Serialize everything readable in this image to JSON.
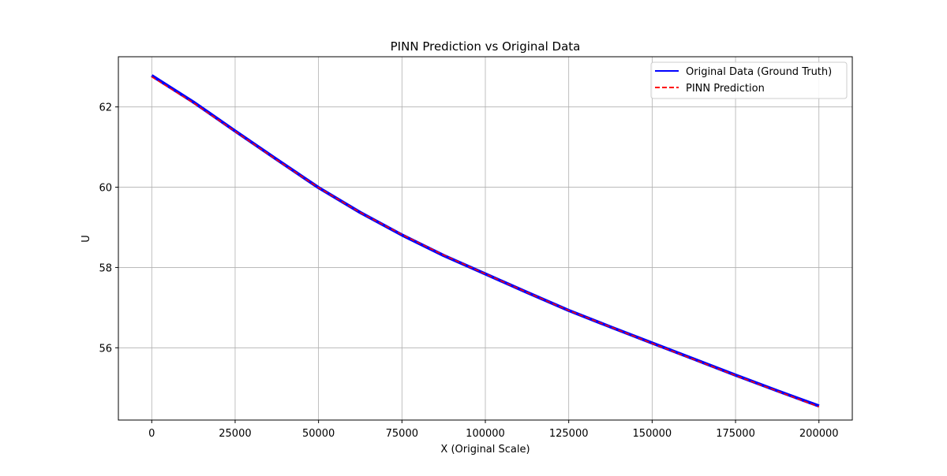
{
  "chart_data": {
    "type": "line",
    "title": "PINN Prediction vs Original Data",
    "xlabel": "X (Original Scale)",
    "ylabel": "U",
    "xlim": [
      -10000,
      210000
    ],
    "ylim": [
      54.2,
      63.25
    ],
    "xticks": [
      0,
      25000,
      50000,
      75000,
      100000,
      125000,
      150000,
      175000,
      200000
    ],
    "yticks": [
      56,
      58,
      60,
      62
    ],
    "grid": true,
    "legend_position": "top-right",
    "series": [
      {
        "name": "Original Data (Ground Truth)",
        "color": "#0000ff",
        "style": "solid",
        "x": [
          0,
          12500,
          25000,
          37500,
          50000,
          62500,
          75000,
          87500,
          100000,
          112500,
          125000,
          137500,
          150000,
          162500,
          175000,
          187500,
          200000
        ],
        "y": [
          62.78,
          62.12,
          61.4,
          60.69,
          59.99,
          59.37,
          58.81,
          58.3,
          57.84,
          57.38,
          56.93,
          56.52,
          56.12,
          55.72,
          55.32,
          54.93,
          54.55
        ]
      },
      {
        "name": "PINN Prediction",
        "color": "#ff0000",
        "style": "dashed",
        "x": [
          0,
          12500,
          25000,
          37500,
          50000,
          62500,
          75000,
          87500,
          100000,
          112500,
          125000,
          137500,
          150000,
          162500,
          175000,
          187500,
          200000
        ],
        "y": [
          62.75,
          62.1,
          61.39,
          60.68,
          59.99,
          59.37,
          58.82,
          58.31,
          57.84,
          57.38,
          56.93,
          56.52,
          56.11,
          55.71,
          55.31,
          54.92,
          54.53
        ]
      }
    ]
  }
}
